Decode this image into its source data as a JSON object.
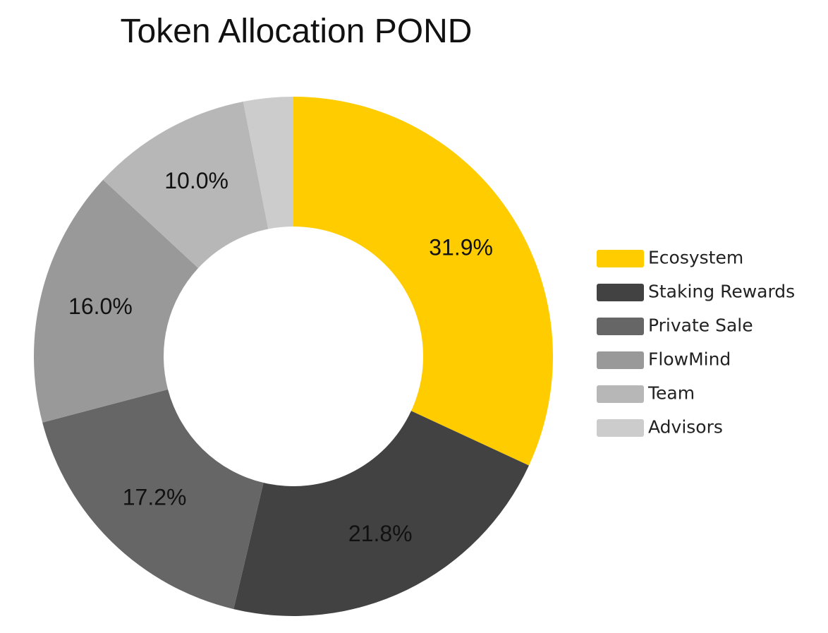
{
  "chart_data": {
    "type": "pie",
    "donut": true,
    "title": "Token Allocation POND",
    "legend_position": "right",
    "slices": [
      {
        "label": "Ecosystem",
        "value": 31.9,
        "value_label": "31.9%",
        "color": "#FFCC00"
      },
      {
        "label": "Staking Rewards",
        "value": 21.8,
        "value_label": "21.8%",
        "color": "#424242"
      },
      {
        "label": "Private Sale",
        "value": 17.2,
        "value_label": "17.2%",
        "color": "#666666"
      },
      {
        "label": "FlowMind",
        "value": 16.0,
        "value_label": "16.0%",
        "color": "#999999"
      },
      {
        "label": "Team",
        "value": 10.0,
        "value_label": "10.0%",
        "color": "#B7B7B7"
      },
      {
        "label": "Advisors",
        "value": 3.1,
        "value_label": "",
        "color": "#CCCCCC"
      }
    ]
  }
}
